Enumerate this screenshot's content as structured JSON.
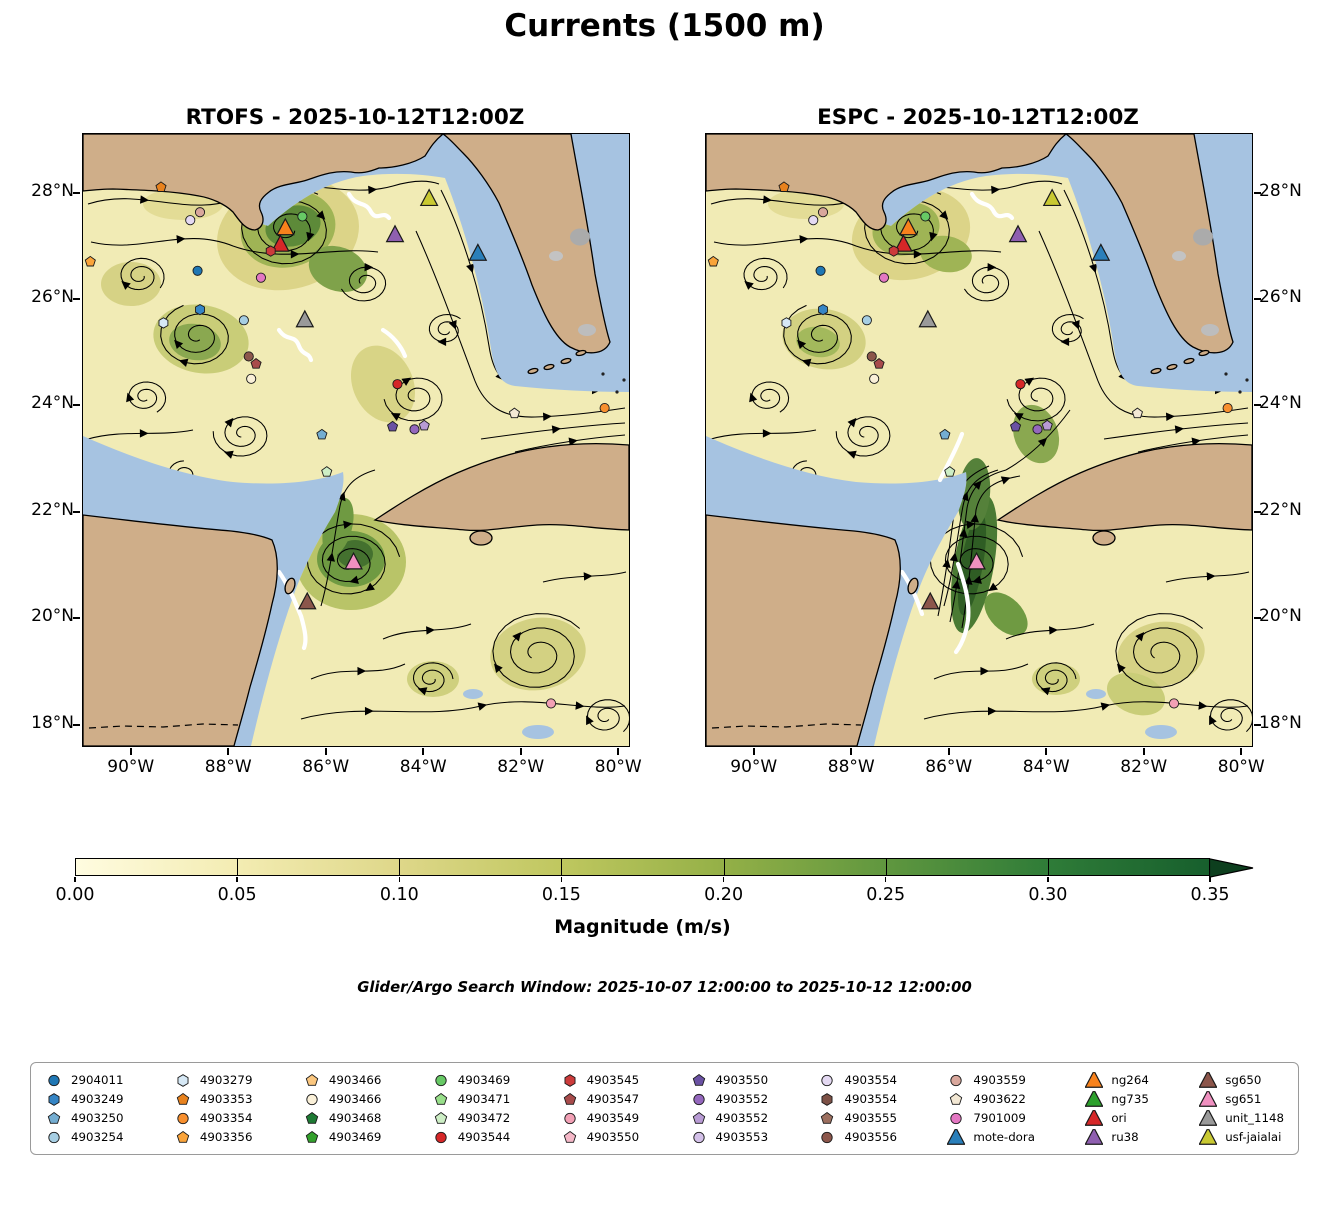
{
  "title": "Currents (1500 m)",
  "panels": [
    {
      "id": "rtofs",
      "title": "RTOFS - 2025-10-12T12:00Z"
    },
    {
      "id": "espc",
      "title": "ESPC - 2025-10-12T12:00Z"
    }
  ],
  "axes": {
    "lat_labels": [
      "28°N",
      "26°N",
      "24°N",
      "22°N",
      "20°N",
      "18°N"
    ],
    "lon_labels": [
      "90°W",
      "88°W",
      "86°W",
      "84°W",
      "82°W",
      "80°W"
    ]
  },
  "colorbar": {
    "label": "Magnitude (m/s)",
    "ticks": [
      "0.00",
      "0.05",
      "0.10",
      "0.15",
      "0.20",
      "0.25",
      "0.30",
      "0.35"
    ],
    "colors": [
      "#fffce0",
      "#f3ecb2",
      "#ded789",
      "#bfc75f",
      "#94b047",
      "#60973f",
      "#2f7c38",
      "#175f2d"
    ],
    "arrow_color": "#0d3f1e"
  },
  "caption": "Glider/Argo Search Window: 2025-10-07 12:00:00 to 2025-10-12 12:00:00",
  "legend": {
    "entries": [
      {
        "label": "2904011",
        "shape": "circle",
        "color": "#1f77b4"
      },
      {
        "label": "4903249",
        "shape": "hexagon",
        "color": "#3585c5"
      },
      {
        "label": "4903250",
        "shape": "pentagon",
        "color": "#74add1"
      },
      {
        "label": "4903254",
        "shape": "circle",
        "color": "#a6cee3"
      },
      {
        "label": "4903279",
        "shape": "hexagon",
        "color": "#d6e8f5"
      },
      {
        "label": "4903353",
        "shape": "pentagon",
        "color": "#e8821e"
      },
      {
        "label": "4903354",
        "shape": "circle",
        "color": "#f78f2e"
      },
      {
        "label": "4903356",
        "shape": "pentagon",
        "color": "#faa43a"
      },
      {
        "label": "4903466",
        "shape": "pentagon",
        "color": "#fbc77f"
      },
      {
        "label": "4903466",
        "shape": "circle",
        "color": "#faf0d8"
      },
      {
        "label": "4903468",
        "shape": "pentagon",
        "color": "#1e7a34"
      },
      {
        "label": "4903469",
        "shape": "pentagon",
        "color": "#33a02c"
      },
      {
        "label": "4903469",
        "shape": "circle",
        "color": "#67c965"
      },
      {
        "label": "4903471",
        "shape": "pentagon",
        "color": "#98df8a"
      },
      {
        "label": "4903472",
        "shape": "pentagon",
        "color": "#cdeec5"
      },
      {
        "label": "4903544",
        "shape": "circle",
        "color": "#d62728"
      },
      {
        "label": "4903545",
        "shape": "hexagon",
        "color": "#cc3b3b"
      },
      {
        "label": "4903547",
        "shape": "pentagon",
        "color": "#a84b4b"
      },
      {
        "label": "4903549",
        "shape": "circle",
        "color": "#f2a0b5"
      },
      {
        "label": "4903550",
        "shape": "pentagon",
        "color": "#f5b8c8"
      },
      {
        "label": "4903550",
        "shape": "pentagon",
        "color": "#6a51a3"
      },
      {
        "label": "4903552",
        "shape": "circle",
        "color": "#9467bd"
      },
      {
        "label": "4903552",
        "shape": "pentagon",
        "color": "#b89bd4"
      },
      {
        "label": "4903553",
        "shape": "circle",
        "color": "#d3c0e8"
      },
      {
        "label": "4903554",
        "shape": "circle",
        "color": "#e4d9f2"
      },
      {
        "label": "4903554",
        "shape": "hexagon",
        "color": "#7d5146"
      },
      {
        "label": "4903555",
        "shape": "pentagon",
        "color": "#9c6f5f"
      },
      {
        "label": "4903556",
        "shape": "circle",
        "color": "#8c564b"
      },
      {
        "label": "4903559",
        "shape": "circle",
        "color": "#d9a79c"
      },
      {
        "label": "4903622",
        "shape": "pentagon",
        "color": "#f3e8d4"
      },
      {
        "label": "7901009",
        "shape": "circle",
        "color": "#e377c2"
      },
      {
        "label": "mote-dora",
        "shape": "triangle",
        "color": "#2a7fba"
      },
      {
        "label": "ng264",
        "shape": "triangle",
        "color": "#f8821c"
      },
      {
        "label": "ng735",
        "shape": "triangle",
        "color": "#2ca02c"
      },
      {
        "label": "ori",
        "shape": "triangle",
        "color": "#d62728"
      },
      {
        "label": "ru38",
        "shape": "triangle",
        "color": "#8f5fb0"
      },
      {
        "label": "sg650",
        "shape": "triangle",
        "color": "#8c564b"
      },
      {
        "label": "sg651",
        "shape": "triangle",
        "color": "#f090c0"
      },
      {
        "label": "unit_1148",
        "shape": "triangle",
        "color": "#9a9a9a"
      },
      {
        "label": "usf-jaialai",
        "shape": "triangle",
        "color": "#c9c932"
      }
    ]
  },
  "chart_data": {
    "type": "map_streamplot",
    "title": "Currents (1500 m)",
    "variable": "ocean current magnitude at 1500 m depth",
    "panels": [
      {
        "model": "RTOFS",
        "valid_time": "2025-10-12T12:00Z"
      },
      {
        "model": "ESPC",
        "valid_time": "2025-10-12T12:00Z"
      }
    ],
    "extent": {
      "lon_range": [
        -91.0,
        -79.8
      ],
      "lat_range": [
        17.6,
        29.1
      ]
    },
    "lon_ticks": [
      -90,
      -88,
      -86,
      -84,
      -82,
      -80
    ],
    "lat_ticks": [
      28,
      26,
      24,
      22,
      20,
      18
    ],
    "colorbar": {
      "label": "Magnitude (m/s)",
      "min": 0.0,
      "max": 0.35,
      "tick_step": 0.05,
      "extend": "max"
    },
    "search_window": {
      "start": "2025-10-07 12:00:00",
      "end": "2025-10-12 12:00:00"
    },
    "platforms": [
      {
        "id": "4903353",
        "shape": "pentagon",
        "color": "#e8821e",
        "lon": -89.4,
        "lat": 28.1
      },
      {
        "id": "4903559",
        "shape": "circle",
        "color": "#d9a79c",
        "lon": -88.6,
        "lat": 27.63
      },
      {
        "id": "4903554",
        "shape": "circle",
        "color": "#e4d9f2",
        "lon": -88.8,
        "lat": 27.48
      },
      {
        "id": "4903469",
        "shape": "circle",
        "color": "#67c965",
        "lon": -86.5,
        "lat": 27.55
      },
      {
        "id": "ng264",
        "shape": "triangle",
        "color": "#f8821c",
        "lon": -86.85,
        "lat": 27.33
      },
      {
        "id": "ori",
        "shape": "triangle",
        "color": "#d62728",
        "lon": -86.95,
        "lat": 27.02
      },
      {
        "id": "ru38",
        "shape": "triangle",
        "color": "#8f5fb0",
        "lon": -84.6,
        "lat": 27.2
      },
      {
        "id": "usf-jaialai",
        "shape": "triangle",
        "color": "#c9c932",
        "lon": -83.9,
        "lat": 27.88
      },
      {
        "id": "mote-dora",
        "shape": "triangle",
        "color": "#2a7fba",
        "lon": -82.9,
        "lat": 26.85
      },
      {
        "id": "4903545",
        "shape": "hexagon",
        "color": "#cc3b3b",
        "lon": -87.15,
        "lat": 26.9
      },
      {
        "id": "2904011",
        "shape": "circle",
        "color": "#1f77b4",
        "lon": -88.65,
        "lat": 26.53
      },
      {
        "id": "7901009",
        "shape": "circle",
        "color": "#e377c2",
        "lon": -87.35,
        "lat": 26.4
      },
      {
        "id": "4903249",
        "shape": "hexagon",
        "color": "#3585c5",
        "lon": -88.6,
        "lat": 25.8
      },
      {
        "id": "4903279",
        "shape": "hexagon",
        "color": "#d6e8f5",
        "lon": -89.35,
        "lat": 25.55
      },
      {
        "id": "4903254",
        "shape": "circle",
        "color": "#a6cee3",
        "lon": -87.7,
        "lat": 25.6
      },
      {
        "id": "unit_1148",
        "shape": "triangle",
        "color": "#9a9a9a",
        "lon": -86.45,
        "lat": 25.6
      },
      {
        "id": "4903556",
        "shape": "circle",
        "color": "#8c564b",
        "lon": -87.6,
        "lat": 24.92
      },
      {
        "id": "4903547",
        "shape": "pentagon",
        "color": "#a84b4b",
        "lon": -87.45,
        "lat": 24.78
      },
      {
        "id": "4903466",
        "shape": "circle",
        "color": "#faf0d8",
        "lon": -87.55,
        "lat": 24.5
      },
      {
        "id": "4903544",
        "shape": "circle",
        "color": "#d62728",
        "lon": -84.55,
        "lat": 24.4
      },
      {
        "id": "4903550",
        "shape": "pentagon",
        "color": "#6a51a3",
        "lon": -84.65,
        "lat": 23.6
      },
      {
        "id": "4903552",
        "shape": "circle",
        "color": "#9467bd",
        "lon": -84.2,
        "lat": 23.55
      },
      {
        "id": "4903552",
        "shape": "pentagon",
        "color": "#b89bd4",
        "lon": -84.0,
        "lat": 23.62
      },
      {
        "id": "4903250",
        "shape": "pentagon",
        "color": "#74add1",
        "lon": -86.1,
        "lat": 23.45
      },
      {
        "id": "4903622",
        "shape": "pentagon",
        "color": "#f3e8d4",
        "lon": -82.15,
        "lat": 23.85
      },
      {
        "id": "4903354",
        "shape": "circle",
        "color": "#f78f2e",
        "lon": -80.3,
        "lat": 23.95
      },
      {
        "id": "4903472",
        "shape": "pentagon",
        "color": "#cdeec5",
        "lon": -86.0,
        "lat": 22.75
      },
      {
        "id": "sg651",
        "shape": "triangle",
        "color": "#f090c0",
        "lon": -85.45,
        "lat": 21.05
      },
      {
        "id": "sg650",
        "shape": "triangle",
        "color": "#8c564b",
        "lon": -86.4,
        "lat": 20.3
      },
      {
        "id": "4903549",
        "shape": "circle",
        "color": "#f2a0b5",
        "lon": -81.4,
        "lat": 18.4
      },
      {
        "id": "4903356",
        "shape": "pentagon",
        "color": "#faa43a",
        "lon": -90.85,
        "lat": 26.7
      }
    ]
  }
}
